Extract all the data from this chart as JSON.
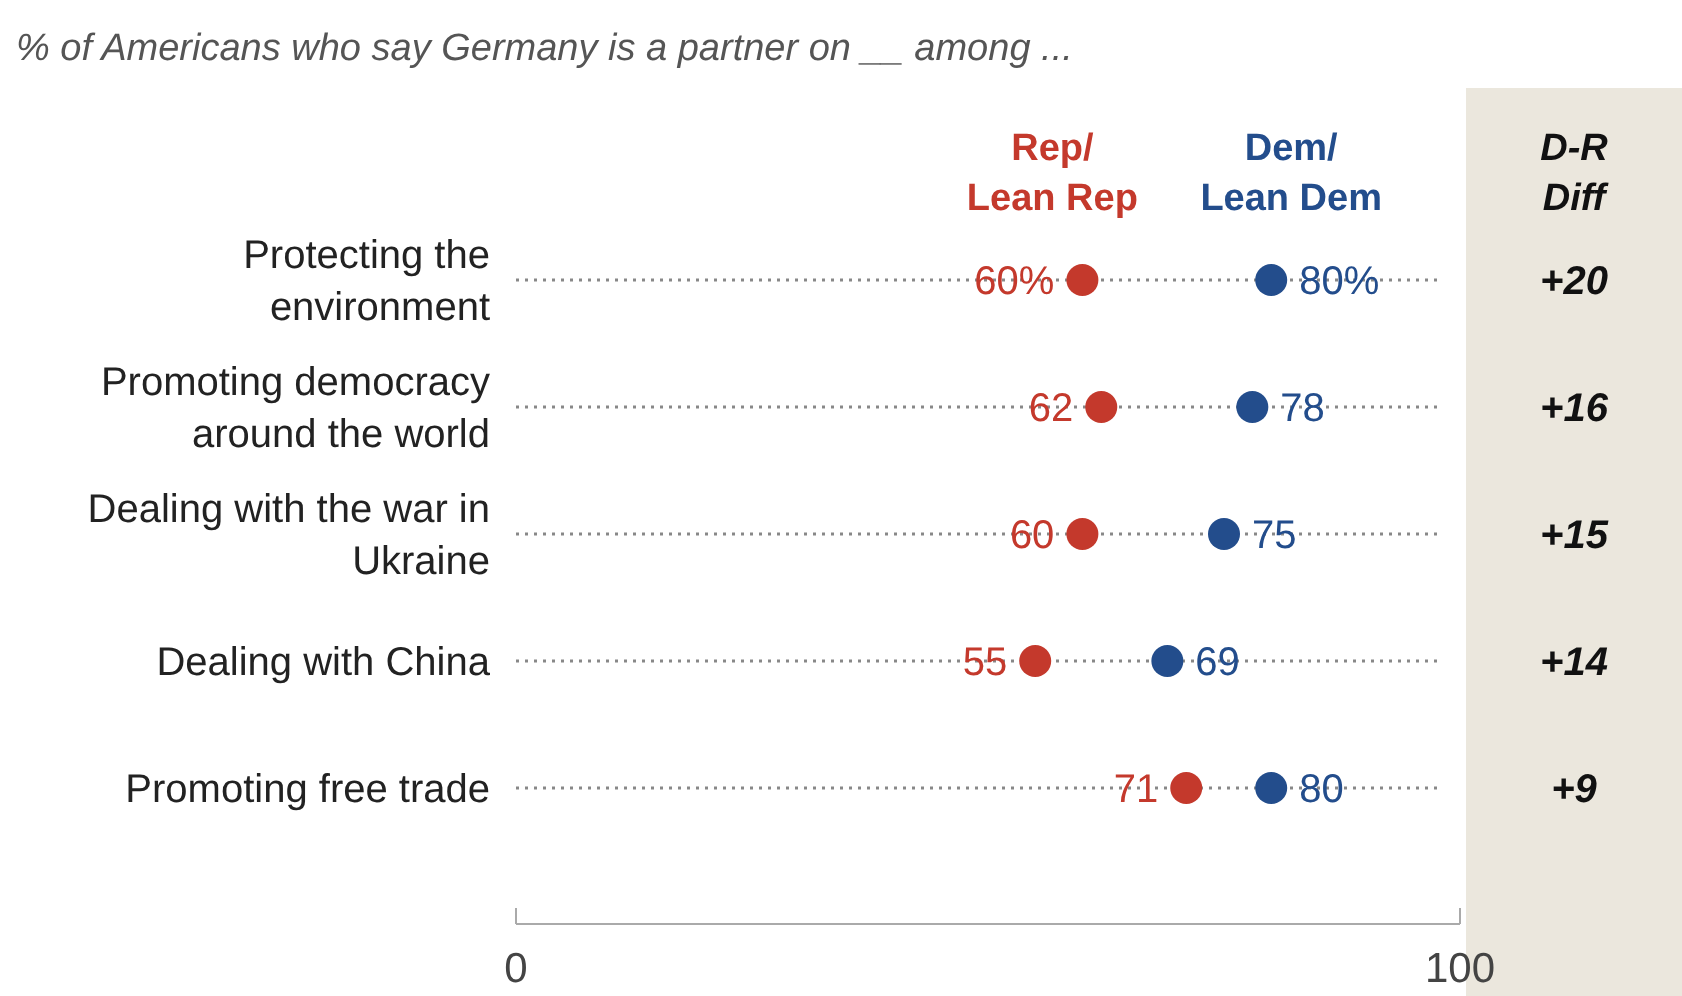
{
  "chart_data": {
    "type": "scatter",
    "orientation": "horizontal",
    "title": "% of Americans who say Germany is a partner on __ among ...",
    "categories": [
      "Protecting the environment",
      "Promoting democracy around the world",
      "Dealing with the war in Ukraine",
      "Dealing with China",
      "Promoting free trade"
    ],
    "series": [
      {
        "name": "Rep/Lean Rep",
        "color": "#c4392c",
        "values": [
          60,
          62,
          60,
          55,
          71
        ],
        "value_labels": [
          "60%",
          "62",
          "60",
          "55",
          "71"
        ]
      },
      {
        "name": "Dem/Lean Dem",
        "color": "#234d8c",
        "values": [
          80,
          78,
          75,
          69,
          80
        ],
        "value_labels": [
          "80%",
          "78",
          "75",
          "69",
          "80"
        ]
      }
    ],
    "xlim": [
      0,
      100
    ],
    "xticks": [
      0,
      100
    ],
    "grid": "y",
    "marker": "circle",
    "annotations": [
      "D-R Diff",
      "+20",
      "+16",
      "+15",
      "+14",
      "+9"
    ]
  }
}
